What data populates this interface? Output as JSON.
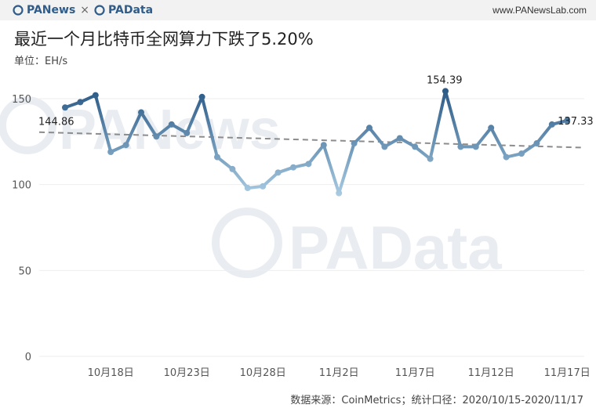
{
  "header": {
    "brand_left": "PANews",
    "times": "×",
    "brand_right": "PAData",
    "site": "www.PANewsLab.com"
  },
  "title": "最近一个月比特币全网算力下跌了5.20%",
  "unit": "单位：EH/s",
  "source": "数据来源：CoinMetrics；统计口径：2020/10/15-2020/11/17",
  "watermarks": [
    "PANews",
    "PAData"
  ],
  "colors": {
    "line_dark": "#2b5a86",
    "line_light": "#a9cce3",
    "trend": "#8c8c8c",
    "brand": "#2f5c8a"
  },
  "chart_data": {
    "type": "line",
    "title": "最近一个月比特币全网算力下跌了5.20%",
    "ylabel": "单位：EH/s",
    "ylim": [
      0,
      160
    ],
    "yticks": [
      0,
      50,
      100,
      150
    ],
    "x": [
      "10/15",
      "10/16",
      "10/17",
      "10/18",
      "10/19",
      "10/20",
      "10/21",
      "10/22",
      "10/23",
      "10/24",
      "10/25",
      "10/26",
      "10/27",
      "10/28",
      "10/29",
      "10/30",
      "10/31",
      "11/1",
      "11/2",
      "11/3",
      "11/4",
      "11/5",
      "11/6",
      "11/7",
      "11/8",
      "11/9",
      "11/10",
      "11/11",
      "11/12",
      "11/13",
      "11/14",
      "11/15",
      "11/16",
      "11/17"
    ],
    "xtick_labels": [
      "10月18日",
      "10月23日",
      "10月28日",
      "11月2日",
      "11月7日",
      "11月12日",
      "11月17日"
    ],
    "xtick_dates": [
      "10/18",
      "10/23",
      "10/28",
      "11/2",
      "11/7",
      "11/12",
      "11/17"
    ],
    "series": [
      {
        "values": [
          144.86,
          148,
          152,
          119,
          123,
          142,
          128,
          135,
          130,
          151,
          116,
          109,
          98,
          99,
          107,
          110,
          112,
          123,
          95,
          124,
          133,
          122,
          127,
          122,
          115,
          154.39,
          122,
          122,
          133,
          116,
          118,
          124,
          135,
          137.33
        ]
      }
    ],
    "trendline": {
      "style": "dashed",
      "start": 130.5,
      "end": 121.5
    },
    "annotations": [
      {
        "x": "10/15",
        "label": "144.86"
      },
      {
        "x": "11/9",
        "label": "154.39"
      },
      {
        "x": "11/17",
        "label": "137.33"
      }
    ],
    "grid": true
  }
}
